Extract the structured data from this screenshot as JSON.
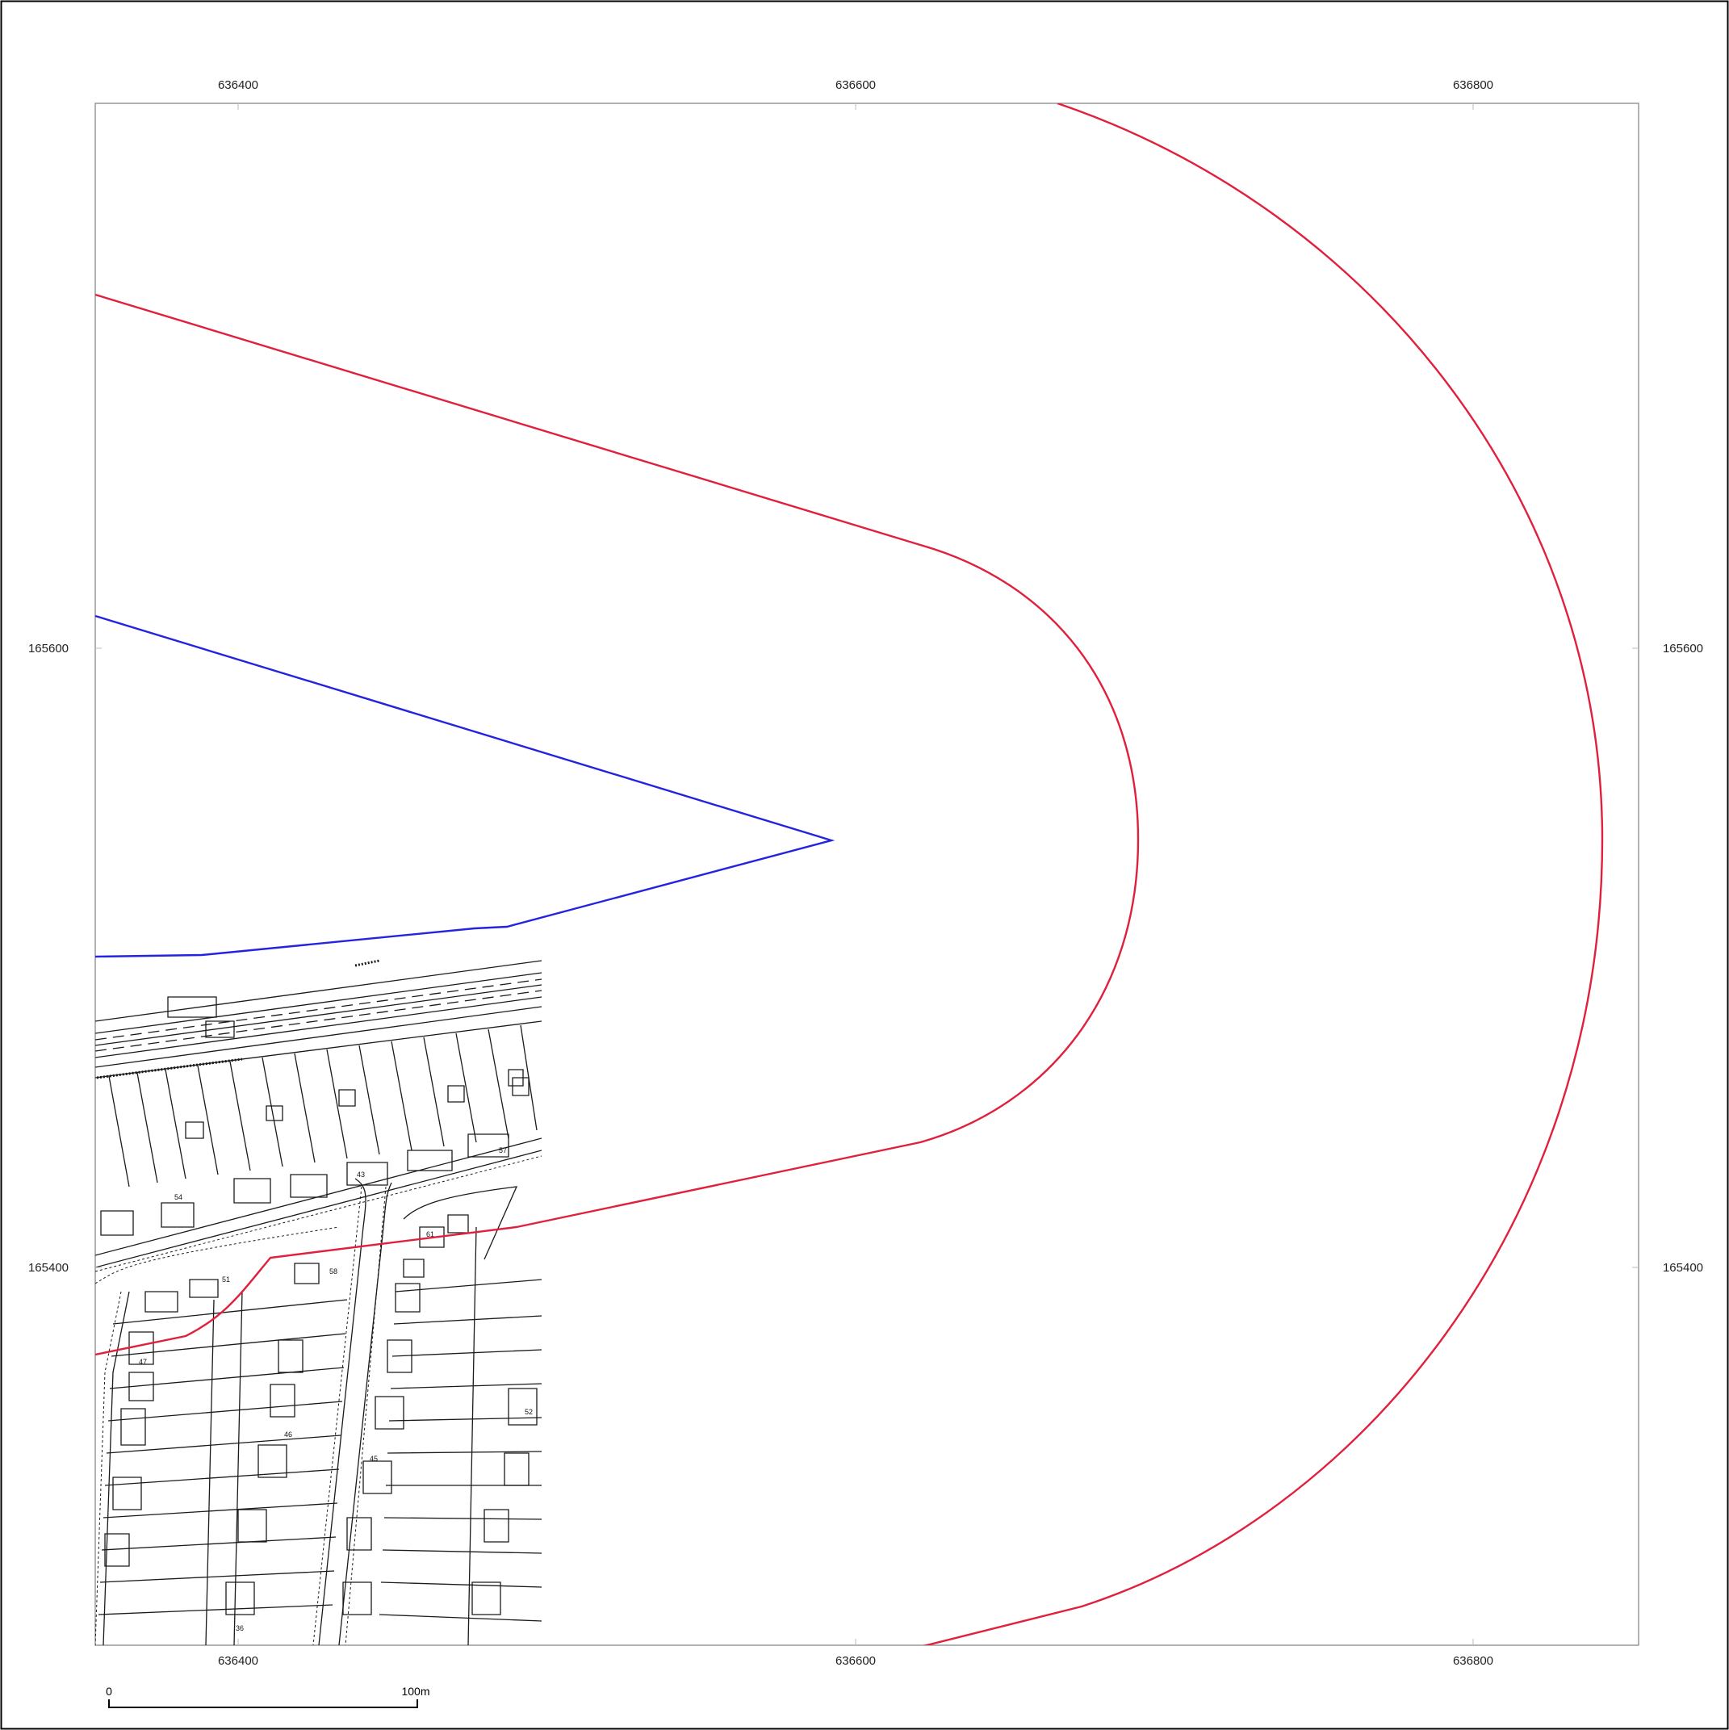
{
  "map": {
    "easting_labels": [
      "636400",
      "636600",
      "636800"
    ],
    "northing_labels": [
      "165600",
      "165400"
    ],
    "scale_bar": {
      "start_label": "0",
      "end_label": "100m",
      "length_m": 100
    },
    "colors": {
      "outer_buffer": "#e0203c",
      "site_boundary": "#2424e0",
      "frame": "#999999",
      "basemap_ink": "#1a1a1a"
    },
    "basemap_plot_numbers": [
      "54",
      "43",
      "57",
      "51",
      "58",
      "47",
      "45",
      "46",
      "52",
      "36",
      "61"
    ]
  }
}
